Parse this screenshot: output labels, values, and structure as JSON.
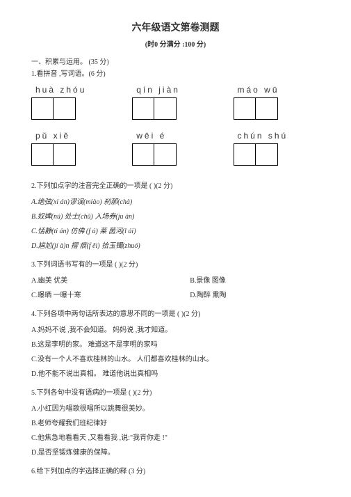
{
  "title": "六年级语文第卷测题",
  "subtitle": "(时0 分满分 :100 分)",
  "section1": "一、积累与运用。 (35 分)",
  "q1_head": "1.看拼音 ,写词语。(6 分)",
  "pinyin": {
    "row1": {
      "p1": "huà zhóu",
      "p2": "qín jiàn",
      "p3": "máo wū"
    },
    "row2": {
      "p1": "pǔ xiě",
      "p2": "wēi é",
      "p3": "chún shú"
    }
  },
  "q2_head": "2.下列加点字的注音完全正确的一项是   (    )(2 分)",
  "q2_a": "A.绝弦(xi án)谬误(miào)   刹那(chà)",
  "q2_b": "B.奴婢(nú) 处士(chǔ)     入场券(ju àn)",
  "q2_c": "C.恬静(ti án)    仿佛 (f ú)    莱 茵河(l ái)",
  "q2_d": "D.尴尬(jí à)n    摺 痕(f ěi)    拾玉镯(zhuó)",
  "q3_head": "3.下列词语书写有的一项是  (    )(2 分)",
  "q3_ab": {
    "a": "A.幽美         优美",
    "b": "B.景像       图像"
  },
  "q3_cd": {
    "c": "C.曝晒         一曝十寒",
    "d": "D.陶醉       熏陶"
  },
  "q4_head": "4.下列各项中两句话所表达的意思不同的一项是   (    )(2 分)",
  "q4_a": "A.妈妈不说 ,我不会知道。      妈妈说 ,我才知道。",
  "q4_b": "B.这是李明的家。     难道这不是李明的家吗",
  "q4_c": "C.没有一个人不喜欢桂林的山水。     人们都喜欢桂林的山水。",
  "q4_d": "D.他不能不说出真相。       难道他说出真相吗",
  "q5_head": "5.下列各句中没有语病的一项是   (    )(2 分)",
  "q5_a": "A.小红因为唱歌很唱所以跳舞很美妙。",
  "q5_b": "B.老师夸耀我们班纪律好",
  "q5_c": "C.他焦急地看看天 ,又看看我 ,说:\"我背你走 !\"",
  "q5_d": "D.是否坚锻炼健康的保障。",
  "q6_head": "6.给下列加点的字选择正确的释   (3 分)"
}
